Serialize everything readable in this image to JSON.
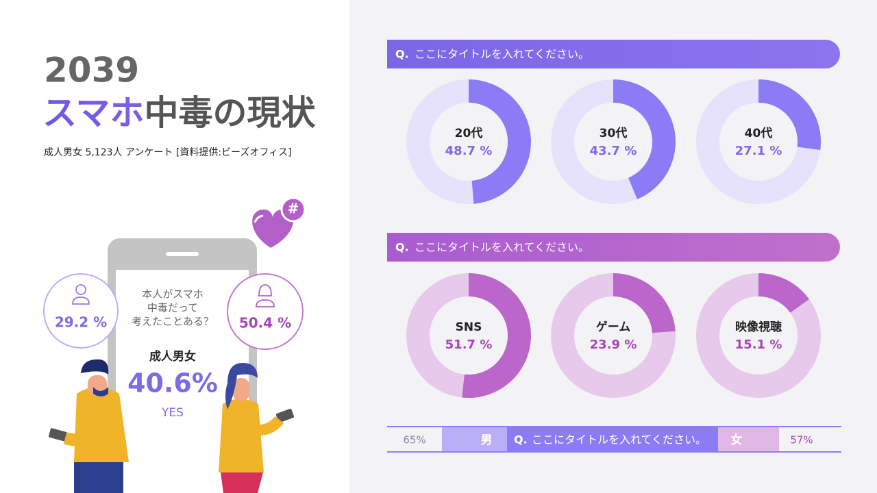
{
  "header": {
    "year": "2039",
    "title_accent": "スマホ",
    "title_rest": "中毒の現状",
    "subtitle": "成人男女 5,123人 アンケート [資料提供:ビーズオフィス]"
  },
  "phone": {
    "question_lines": [
      "本人がスマホ",
      "中毒だって",
      "考えたことある？"
    ],
    "group": "成人男女",
    "value": "40.6%",
    "answer": "YES",
    "male": "29.2 %",
    "female": "50.4 %"
  },
  "panels": [
    {
      "q_mark": "Q.",
      "title": "ここにタイトルを入れてください。",
      "color": "#8b7cf6",
      "track_color": "#e7e2fb",
      "text_color": "#7b6be6",
      "items": [
        {
          "label": "20代",
          "value": 48.7,
          "value_label": "48.7 %"
        },
        {
          "label": "30代",
          "value": 43.7,
          "value_label": "43.7 %"
        },
        {
          "label": "40代",
          "value": 27.1,
          "value_label": "27.1 %"
        }
      ]
    },
    {
      "q_mark": "Q.",
      "title": "ここにタイトルを入れてください。",
      "color": "#bb66cb",
      "track_color": "#e6c9eb",
      "text_color": "#a844b8",
      "items": [
        {
          "label": "SNS",
          "value": 51.7,
          "value_label": "51.7 %"
        },
        {
          "label": "ゲーム",
          "value": 23.9,
          "value_label": "23.9 %"
        },
        {
          "label": "映像視聴",
          "value": 15.1,
          "value_label": "15.1 %"
        }
      ]
    }
  ],
  "gender_bar": {
    "male_value": "65%",
    "male_label": "男",
    "q_mark": "Q.",
    "title": "ここにタイトルを入れてください。",
    "female_label": "女",
    "female_value": "57%"
  }
}
